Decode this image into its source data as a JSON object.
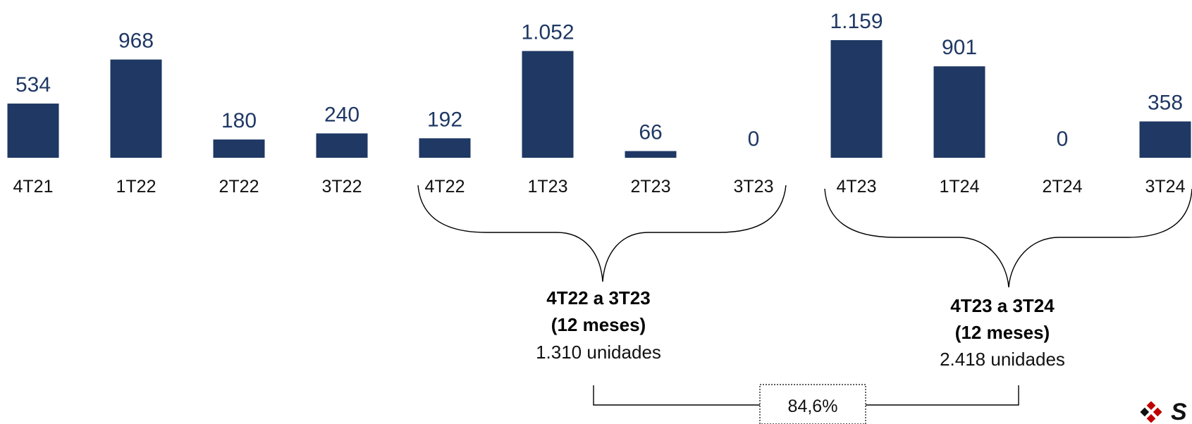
{
  "chart_data": {
    "type": "bar",
    "categories": [
      "4T21",
      "1T22",
      "2T22",
      "3T22",
      "4T22",
      "1T23",
      "2T23",
      "3T23",
      "4T23",
      "1T24",
      "2T24",
      "3T24"
    ],
    "values": [
      534,
      968,
      180,
      240,
      192,
      1052,
      66,
      0,
      1159,
      901,
      0,
      358
    ],
    "value_labels": [
      "534",
      "968",
      "180",
      "240",
      "192",
      "1.052",
      "66",
      "0",
      "1.159",
      "901",
      "0",
      "358"
    ],
    "title": "",
    "xlabel": "",
    "ylabel": "",
    "ylim": [
      0,
      1159
    ],
    "grid": false,
    "legend": "none",
    "bar_color": "#1f3864",
    "groups": [
      {
        "from": "4T22",
        "to": "3T23",
        "title": "4T22 a 3T23",
        "subtitle": "(12 meses)",
        "units": "1.310 unidades"
      },
      {
        "from": "4T23",
        "to": "3T24",
        "title": "4T23 a 3T24",
        "subtitle": "(12 meses)",
        "units": "2.418 unidades"
      }
    ],
    "growth_label": "84,6%"
  },
  "logo": {
    "text": "S"
  }
}
